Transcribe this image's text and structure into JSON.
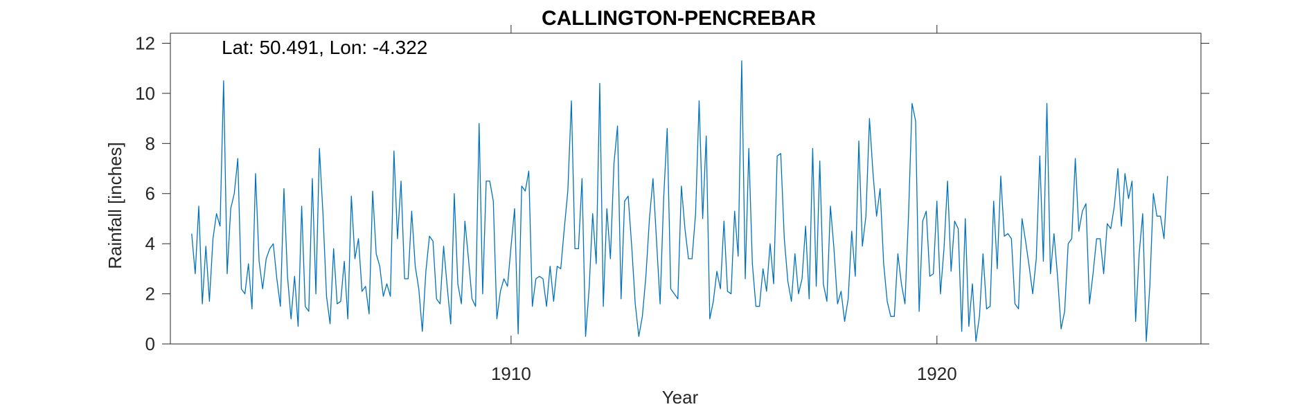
{
  "chart_data": {
    "type": "line",
    "title": "CALLINGTON-PENCREBAR",
    "xlabel": "Year",
    "ylabel": "Rainfall [inches]",
    "annotation": "Lat: 50.491, Lon: -4.322",
    "xlim": [
      1902.0,
      1926.2
    ],
    "ylim": [
      0,
      12.4
    ],
    "x_ticks": [
      1910,
      1920
    ],
    "x_tick_labels": [
      "1910",
      "1920"
    ],
    "y_ticks": [
      0,
      2,
      4,
      6,
      8,
      10,
      12
    ],
    "y_tick_labels": [
      "0",
      "2",
      "4",
      "6",
      "8",
      "10",
      "12"
    ],
    "grid": false,
    "x_start": 1902.5,
    "x_step": 0.08333,
    "series": [
      {
        "color": "#0072BD",
        "values": [
          4.4,
          2.8,
          5.5,
          1.6,
          3.9,
          1.7,
          4.2,
          5.2,
          4.7,
          10.5,
          2.8,
          5.4,
          6.0,
          7.4,
          2.2,
          2.0,
          3.2,
          1.4,
          6.8,
          3.3,
          2.2,
          3.4,
          3.8,
          4.0,
          2.6,
          1.5,
          6.2,
          2.7,
          1.0,
          2.7,
          0.7,
          5.5,
          1.5,
          1.3,
          6.6,
          2.0,
          7.8,
          5.2,
          1.9,
          0.8,
          3.8,
          1.6,
          1.7,
          3.3,
          1.0,
          5.9,
          3.4,
          4.2,
          2.1,
          2.3,
          1.2,
          6.1,
          3.6,
          3.1,
          1.9,
          2.4,
          1.9,
          7.7,
          4.2,
          6.5,
          2.6,
          2.6,
          5.3,
          3.1,
          2.2,
          0.5,
          2.9,
          4.3,
          4.1,
          1.8,
          1.6,
          3.9,
          2.3,
          0.8,
          6.0,
          2.4,
          1.6,
          4.9,
          3.4,
          1.8,
          1.5,
          8.8,
          2.0,
          6.5,
          6.5,
          5.7,
          1.0,
          2.1,
          2.6,
          2.3,
          3.9,
          5.4,
          0.4,
          6.3,
          6.1,
          6.9,
          1.5,
          2.6,
          2.7,
          2.6,
          1.5,
          3.1,
          1.7,
          3.1,
          3.0,
          4.6,
          6.1,
          9.7,
          3.8,
          3.8,
          6.6,
          0.3,
          2.2,
          5.2,
          3.2,
          10.4,
          1.5,
          5.4,
          3.4,
          7.2,
          8.7,
          1.8,
          5.7,
          5.9,
          3.9,
          1.6,
          0.3,
          1.1,
          2.7,
          5.0,
          6.6,
          4.1,
          1.6,
          5.8,
          8.6,
          2.2,
          2.0,
          1.8,
          6.3,
          4.6,
          3.4,
          3.4,
          5.2,
          9.7,
          5.0,
          8.3,
          1.0,
          1.7,
          2.9,
          2.2,
          4.9,
          2.1,
          2.0,
          5.3,
          3.5,
          11.3,
          2.6,
          7.8,
          3.2,
          1.5,
          1.5,
          3.0,
          2.1,
          4.0,
          2.4,
          7.5,
          7.6,
          4.2,
          2.5,
          1.7,
          3.6,
          2.0,
          2.6,
          4.7,
          1.8,
          7.8,
          2.3,
          7.3,
          2.4,
          1.7,
          5.5,
          3.8,
          1.6,
          2.1,
          0.9,
          1.8,
          4.5,
          2.7,
          8.1,
          3.9,
          5.1,
          9.0,
          6.8,
          5.1,
          6.2,
          3.2,
          1.7,
          1.1,
          1.1,
          3.6,
          2.4,
          1.6,
          5.1,
          9.6,
          8.9,
          1.3,
          4.9,
          5.3,
          2.7,
          2.8,
          5.7,
          2.0,
          3.8,
          6.5,
          2.9,
          4.9,
          4.6,
          0.5,
          5.0,
          0.7,
          2.4,
          0.1,
          1.1,
          3.6,
          1.4,
          1.5,
          5.7,
          3.0,
          6.7,
          4.3,
          4.4,
          4.2,
          1.6,
          1.4,
          5.0,
          4.1,
          3.1,
          2.0,
          3.4,
          7.5,
          3.3,
          9.6,
          2.8,
          4.4,
          2.7,
          0.6,
          1.3,
          4.0,
          4.2,
          7.4,
          4.5,
          5.3,
          5.6,
          1.6,
          2.8,
          4.2,
          4.2,
          2.8,
          4.8,
          4.6,
          5.5,
          7.0,
          4.7,
          6.8,
          5.8,
          6.5,
          0.9,
          3.6,
          5.2,
          0.1,
          2.3,
          6.0,
          5.1,
          5.1,
          4.2,
          6.7
        ]
      }
    ]
  }
}
